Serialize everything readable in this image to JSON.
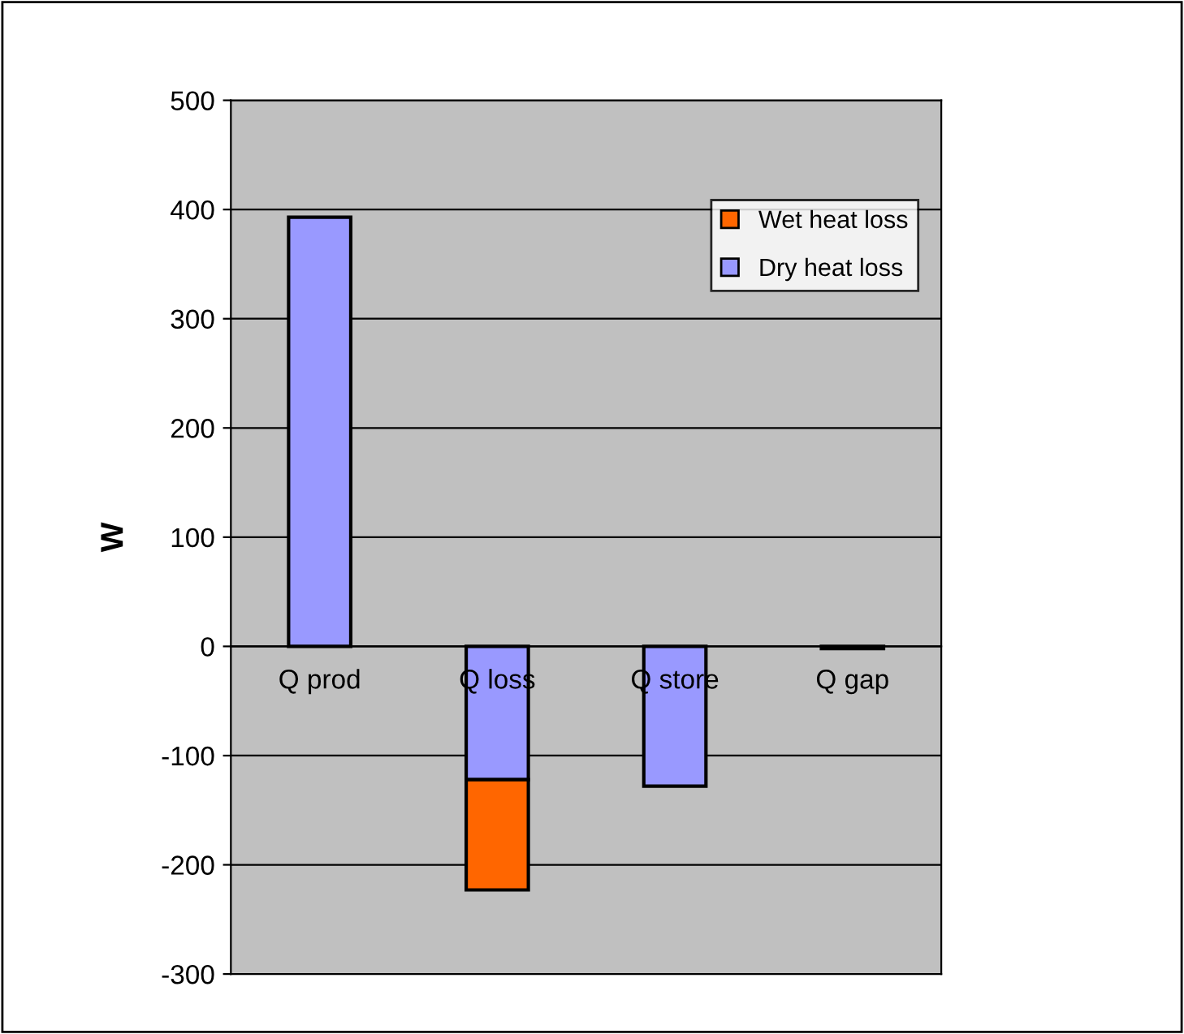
{
  "chart_data": {
    "type": "bar",
    "ylabel": "W",
    "categories": [
      "Q prod",
      "Q loss",
      "Q store",
      "Q gap"
    ],
    "stacked": true,
    "series": [
      {
        "name": "Dry heat loss",
        "color": "#9999ff",
        "values": [
          393,
          -122,
          -128,
          -2
        ]
      },
      {
        "name": "Wet heat loss",
        "color": "#ff6600",
        "values": [
          null,
          -101,
          null,
          null
        ]
      }
    ],
    "ylim": [
      -300,
      500
    ],
    "yticks": [
      -300,
      -200,
      -100,
      0,
      100,
      200,
      300,
      400,
      500
    ],
    "grid": "y",
    "legend": "top right"
  }
}
